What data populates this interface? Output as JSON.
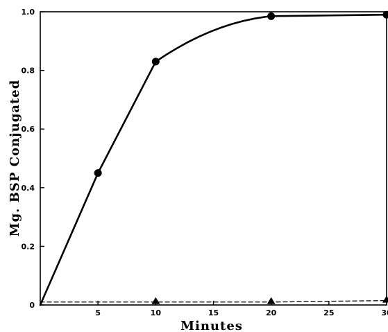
{
  "chart_data": {
    "type": "line",
    "title": "",
    "xlabel": "Minutes",
    "ylabel": "Mg. BSP Conjugated",
    "xlim": [
      0,
      30
    ],
    "ylim": [
      0,
      1.0
    ],
    "x_ticks": [
      5,
      10,
      15,
      20,
      25,
      30
    ],
    "x_tick_labels": [
      "5",
      "10",
      "15",
      "20",
      "25",
      "30"
    ],
    "y_ticks": [
      0,
      0.2,
      0.4,
      0.6,
      0.8,
      1.0
    ],
    "y_tick_labels": [
      "0",
      "0.2",
      "0.4",
      "0.6",
      "0.8",
      "1.0"
    ],
    "grid": false,
    "legend": "none",
    "series": [
      {
        "marker": "circle",
        "line_style": "solid",
        "points": [
          [
            0,
            0
          ],
          [
            5,
            0.45
          ],
          [
            10,
            0.83
          ],
          [
            20,
            0.985
          ],
          [
            30,
            0.99
          ]
        ]
      },
      {
        "marker": "triangle",
        "line_style": "dashed",
        "points": [
          [
            0,
            0.01
          ],
          [
            10,
            0.01
          ],
          [
            20,
            0.01
          ],
          [
            30,
            0.015
          ]
        ]
      }
    ]
  }
}
